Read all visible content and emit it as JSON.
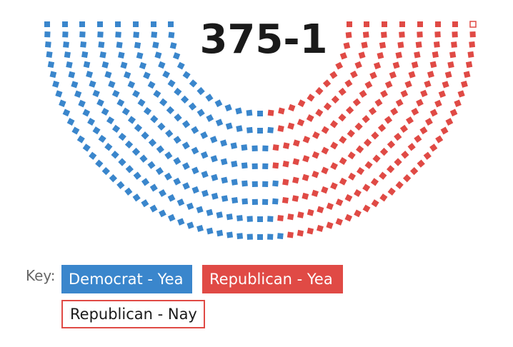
{
  "chart_data": {
    "type": "parliament",
    "title": "375-1",
    "rows": 8,
    "series": [
      {
        "name": "Democrat - Yea",
        "count": 200,
        "color": "#3a86cc",
        "fill": "solid"
      },
      {
        "name": "Republican - Yea",
        "count": 175,
        "color": "#e04a45",
        "fill": "solid"
      },
      {
        "name": "Republican - Nay",
        "count": 1,
        "color": "#e04a45",
        "fill": "outline"
      }
    ]
  },
  "key": {
    "label": "Key:",
    "items": [
      {
        "label": "Democrat - Yea",
        "color": "#3a86cc"
      },
      {
        "label": "Republican - Yea",
        "color": "#e04a45"
      },
      {
        "label": "Republican - Nay",
        "color": "#e04a45"
      }
    ]
  }
}
